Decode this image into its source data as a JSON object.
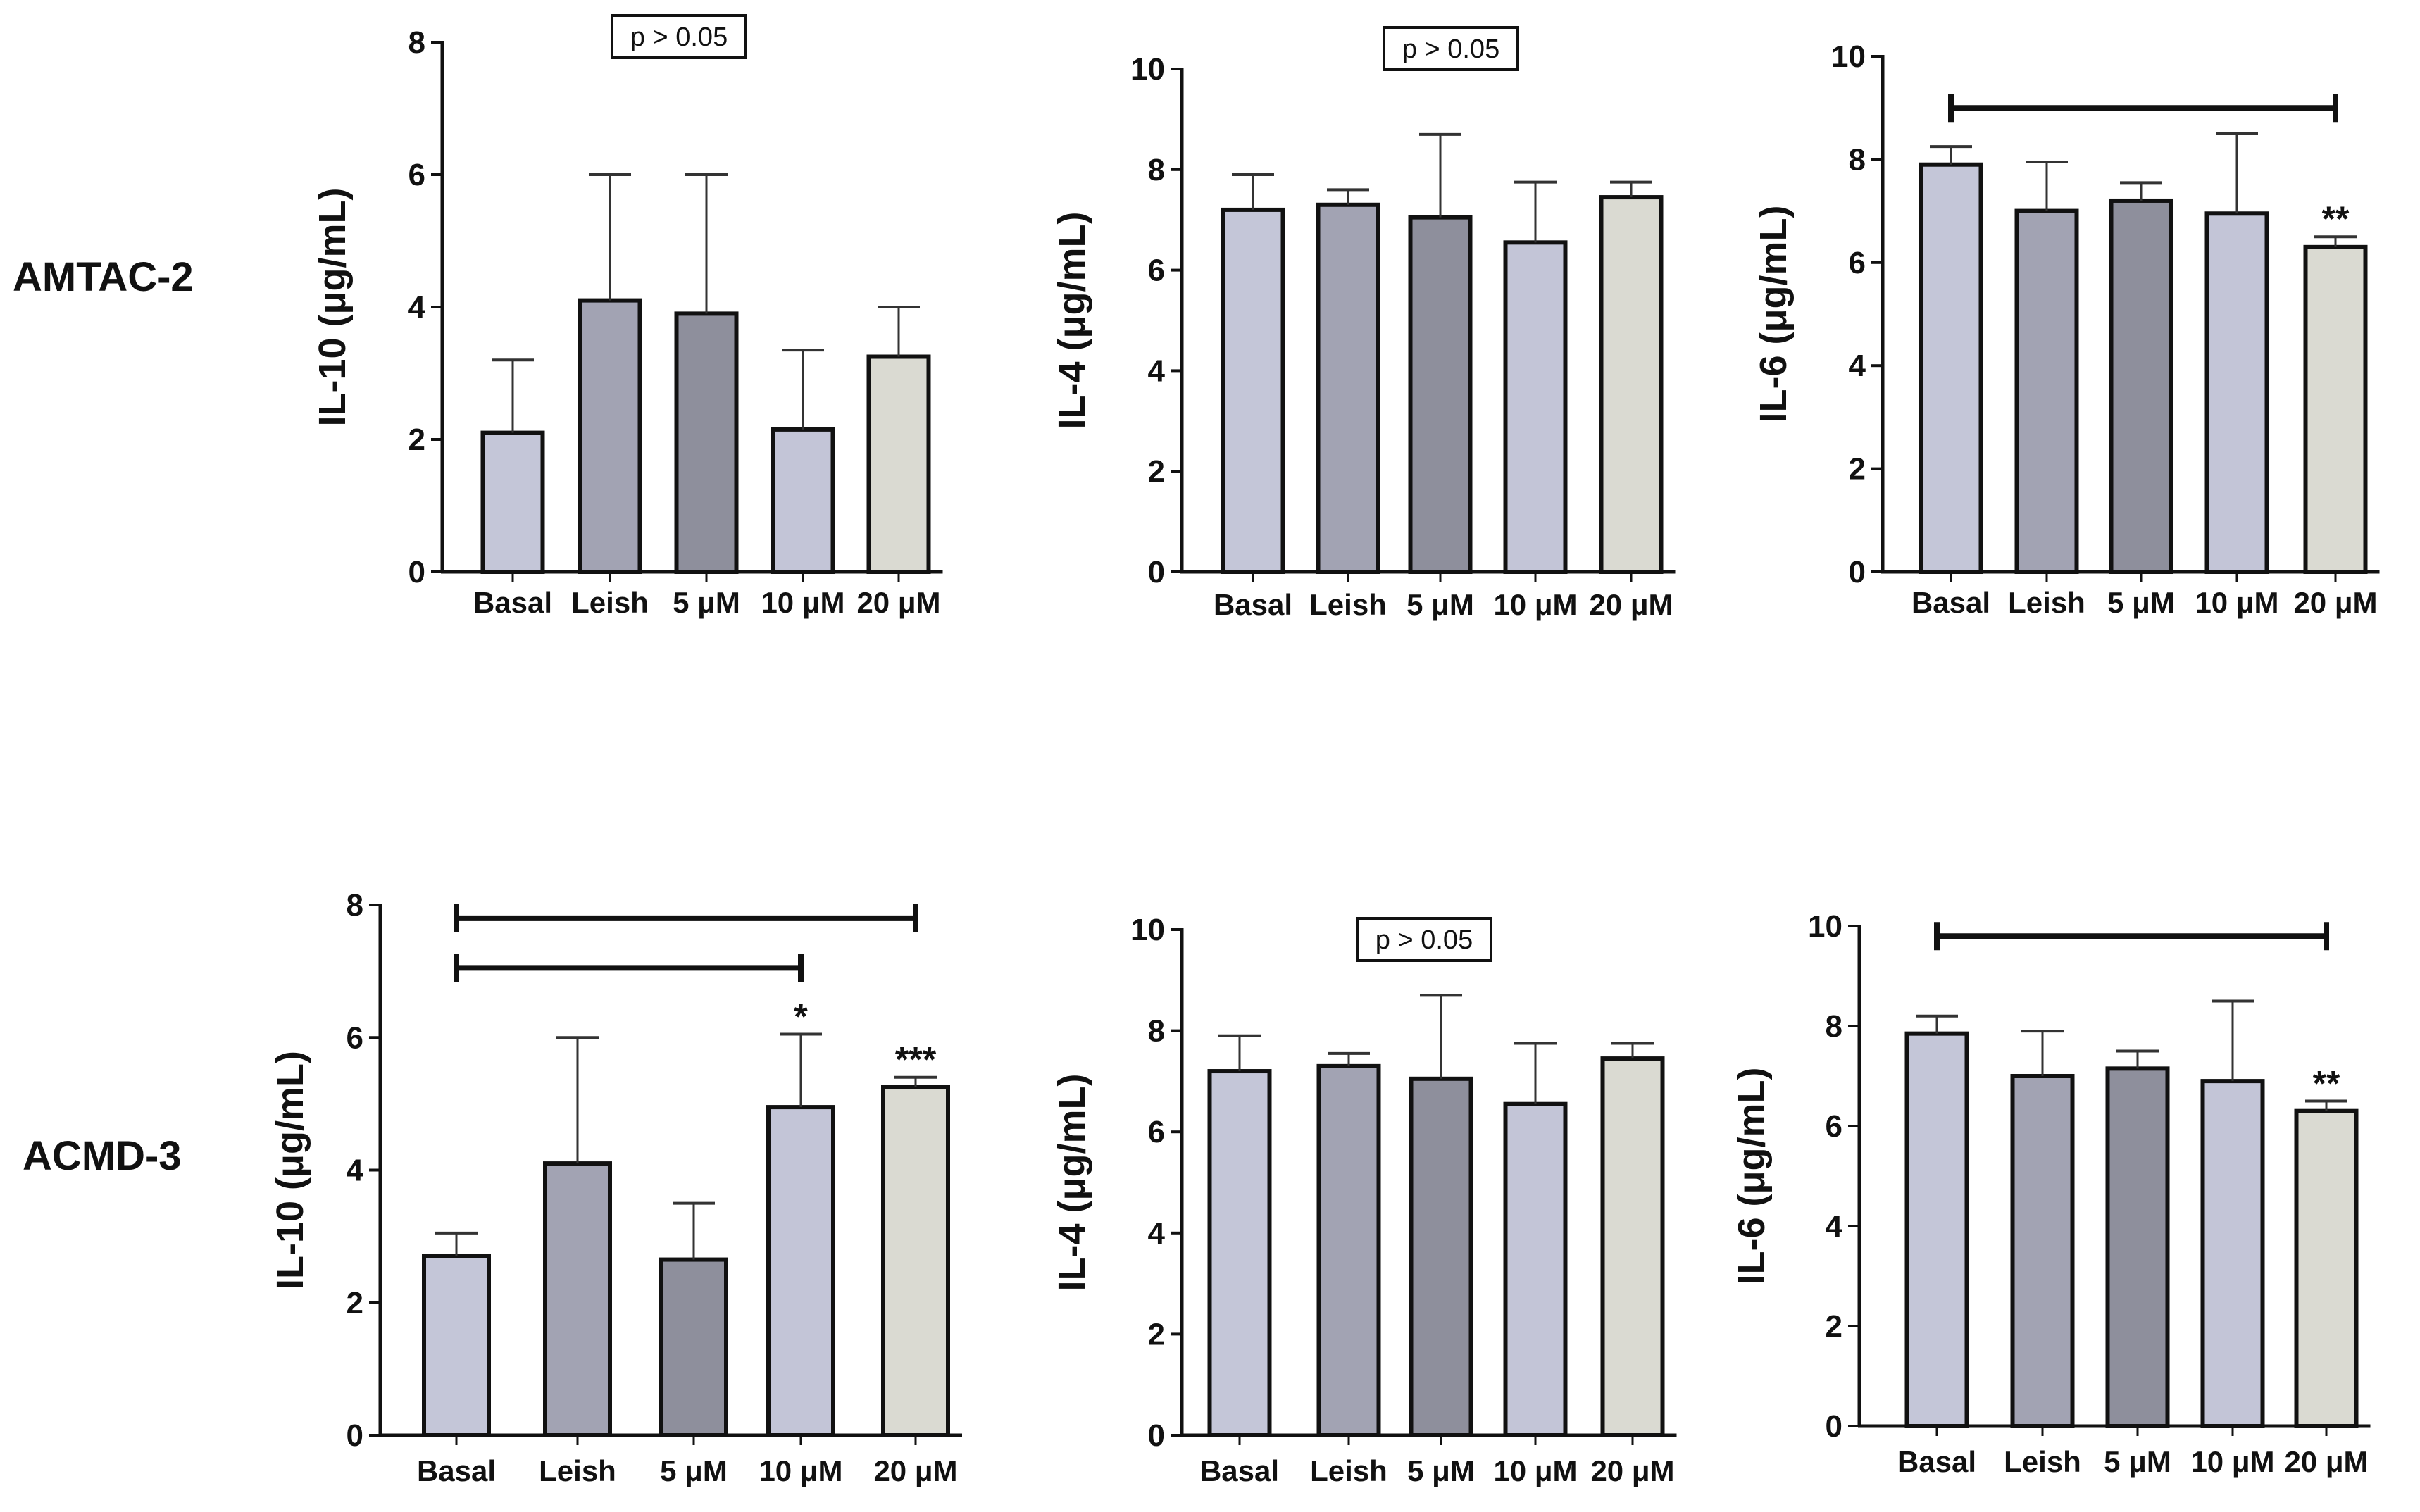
{
  "rows": [
    "AMTAC-2",
    "ACMD-3"
  ],
  "colors": {
    "basal": "#c4c6d8",
    "leish": "#a2a3b3",
    "c5": "#8e8f9c",
    "c10": "#c3c5d7",
    "c20": "#dadad2",
    "outline": "#111111"
  },
  "chart_data": [
    {
      "type": "bar",
      "row": "AMTAC-2",
      "categories": [
        "Basal",
        "Leish",
        "5 μM",
        "10 μM",
        "20 μM"
      ],
      "values": [
        2.1,
        4.1,
        3.9,
        2.15,
        3.25
      ],
      "errors": [
        1.1,
        1.9,
        2.1,
        1.2,
        0.75
      ],
      "ylabel": "IL-10 (μg/mL)",
      "ylim": [
        0,
        8
      ],
      "yticks": [
        "0",
        "2",
        "4",
        "6",
        "8"
      ],
      "fills": [
        "basal",
        "leish",
        "c5",
        "c10",
        "c20"
      ],
      "pvalue_box": "p > 0.05",
      "stars": [
        "",
        "",
        "",
        "",
        ""
      ],
      "brackets": []
    },
    {
      "type": "bar",
      "row": "AMTAC-2",
      "categories": [
        "Basal",
        "Leish",
        "5 μM",
        "10 μM",
        "20 μM"
      ],
      "values": [
        7.2,
        7.3,
        7.05,
        6.55,
        7.45
      ],
      "errors": [
        0.7,
        0.3,
        1.65,
        1.2,
        0.3
      ],
      "ylabel": "IL-4 (μg/mL)",
      "ylim": [
        0,
        10
      ],
      "yticks": [
        "0",
        "2",
        "4",
        "6",
        "8",
        "10"
      ],
      "fills": [
        "basal",
        "leish",
        "c5",
        "c10",
        "c20"
      ],
      "pvalue_box": "p > 0.05",
      "stars": [
        "",
        "",
        "",
        "",
        ""
      ],
      "brackets": []
    },
    {
      "type": "bar",
      "row": "AMTAC-2",
      "categories": [
        "Basal",
        "Leish",
        "5 μM",
        "10 μM",
        "20 μM"
      ],
      "values": [
        7.9,
        7.0,
        7.2,
        6.95,
        6.3
      ],
      "errors": [
        0.35,
        0.95,
        0.35,
        1.55,
        0.2
      ],
      "ylabel": "IL-6 (μg/mL)",
      "ylim": [
        0,
        10
      ],
      "yticks": [
        "0",
        "2",
        "4",
        "6",
        "8",
        "10"
      ],
      "fills": [
        "basal",
        "leish",
        "c5",
        "c10",
        "c20"
      ],
      "pvalue_box": "",
      "stars": [
        "",
        "",
        "",
        "",
        "**"
      ],
      "brackets": [
        {
          "from": 0,
          "to": 4,
          "y": 9.0
        }
      ]
    },
    {
      "type": "bar",
      "row": "ACMD-3",
      "categories": [
        "Basal",
        "Leish",
        "5 μM",
        "10 μM",
        "20 μM"
      ],
      "values": [
        2.7,
        4.1,
        2.65,
        4.95,
        5.25
      ],
      "errors": [
        0.35,
        1.9,
        0.85,
        1.1,
        0.15
      ],
      "ylabel": "IL-10 (μg/mL)",
      "ylim": [
        0,
        8
      ],
      "yticks": [
        "0",
        "2",
        "4",
        "6",
        "8"
      ],
      "fills": [
        "basal",
        "leish",
        "c5",
        "c10",
        "c20"
      ],
      "pvalue_box": "",
      "stars": [
        "",
        "",
        "",
        "*",
        "***"
      ],
      "brackets": [
        {
          "from": 0,
          "to": 4,
          "y": 7.8
        },
        {
          "from": 0,
          "to": 3,
          "y": 7.05
        }
      ]
    },
    {
      "type": "bar",
      "row": "ACMD-3",
      "categories": [
        "Basal",
        "Leish",
        "5 μM",
        "10 μM",
        "20 μM"
      ],
      "values": [
        7.2,
        7.3,
        7.05,
        6.55,
        7.45
      ],
      "errors": [
        0.7,
        0.25,
        1.65,
        1.2,
        0.3
      ],
      "ylabel": "IL-4 (μg/mL)",
      "ylim": [
        0,
        10
      ],
      "yticks": [
        "0",
        "2",
        "4",
        "6",
        "8",
        "10"
      ],
      "fills": [
        "basal",
        "leish",
        "c5",
        "c10",
        "c20"
      ],
      "pvalue_box": "p > 0.05",
      "stars": [
        "",
        "",
        "",
        "",
        ""
      ],
      "brackets": []
    },
    {
      "type": "bar",
      "row": "ACMD-3",
      "categories": [
        "Basal",
        "Leish",
        "5 μM",
        "10 μM",
        "20 μM"
      ],
      "values": [
        7.85,
        7.0,
        7.15,
        6.9,
        6.3
      ],
      "errors": [
        0.35,
        0.9,
        0.35,
        1.6,
        0.2
      ],
      "ylabel": "IL-6 (μg/mL)",
      "ylim": [
        0,
        10
      ],
      "yticks": [
        "0",
        "2",
        "4",
        "6",
        "8",
        "10"
      ],
      "fills": [
        "basal",
        "leish",
        "c5",
        "c10",
        "c20"
      ],
      "pvalue_box": "",
      "stars": [
        "",
        "",
        "",
        "",
        "**"
      ],
      "brackets": [
        {
          "from": 0,
          "to": 4,
          "y": 9.8
        }
      ]
    }
  ]
}
